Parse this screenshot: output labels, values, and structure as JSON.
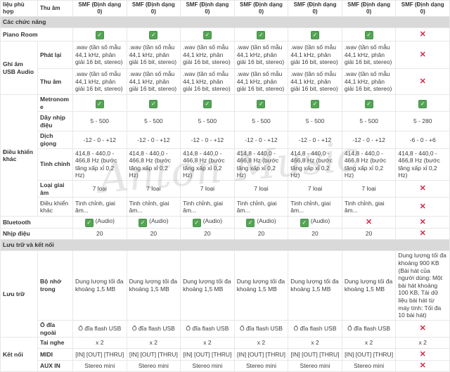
{
  "watermark": "Anton Music",
  "colors": {
    "check_green": "#55a455",
    "cross_red": "#cd2b47",
    "section_bg": "#d9d9d9",
    "border": "#e7e7e7",
    "text": "#3d3d3d"
  },
  "table": {
    "header": {
      "group": "liệu phù hợp",
      "sub": "Thu âm",
      "values": [
        "SMF (Định dạng 0)",
        "SMF (Định dạng 0)",
        "SMF (Định dạng 0)",
        "SMF (Định dạng 0)",
        "SMF (Định dạng 0)",
        "SMF (Định dạng 0)",
        "SMF (Định dạng 0)"
      ]
    },
    "rows": [
      {
        "type": "header",
        "group": "liệu phù hợp",
        "label": "Thu âm",
        "cells": [
          {
            "text": "SMF (Định dạng 0)"
          },
          {
            "text": "SMF (Định dạng 0)"
          },
          {
            "text": "SMF (Định dạng 0)"
          },
          {
            "text": "SMF (Định dạng 0)"
          },
          {
            "text": "SMF (Định dạng 0)"
          },
          {
            "text": "SMF (Định dạng 0)"
          },
          {
            "text": "SMF (Định dạng 0)"
          }
        ]
      },
      {
        "type": "section",
        "label": "Các chức năng"
      },
      {
        "type": "row",
        "span2": true,
        "label": "Piano Room",
        "cells": [
          {
            "icon": "check"
          },
          {
            "icon": "check"
          },
          {
            "icon": "check"
          },
          {
            "icon": "check"
          },
          {
            "icon": "check"
          },
          {
            "icon": "check"
          },
          {
            "icon": "cross"
          }
        ]
      },
      {
        "type": "row",
        "group": "Ghi âm USB Audio",
        "group_rows": 2,
        "label": "Phát lại",
        "cells": [
          {
            "text": ".wav (tần số mẫu 44,1 kHz, phân giải 16 bit, stereo)"
          },
          {
            "text": ".wav (tần số mẫu 44,1 kHz, phân giải 16 bit, stereo)"
          },
          {
            "text": ".wav (tần số mẫu 44,1 kHz, phân giải 16 bit, stereo)"
          },
          {
            "text": ".wav (tần số mẫu 44,1 kHz, phân giải 16 bit, stereo)"
          },
          {
            "text": ".wav (tần số mẫu 44,1 kHz, phân giải 16 bit, stereo)"
          },
          {
            "text": ".wav (tần số mẫu 44,1 kHz, phân giải 16 bit, stereo)"
          },
          {
            "icon": "cross"
          }
        ]
      },
      {
        "type": "row",
        "label": "Thu âm",
        "cells": [
          {
            "text": ".wav (tần số mẫu 44,1 kHz, phân giải 16 bit, stereo)"
          },
          {
            "text": ".wav (tần số mẫu 44,1 kHz, phân giải 16 bit, stereo)"
          },
          {
            "text": ".wav (tần số mẫu 44,1 kHz, phân giải 16 bit, stereo)"
          },
          {
            "text": ".wav (tần số mẫu 44,1 kHz, phân giải 16 bit, stereo)"
          },
          {
            "text": ".wav (tần số mẫu 44,1 kHz, phân giải 16 bit, stereo)"
          },
          {
            "text": ".wav (tần số mẫu 44,1 kHz, phân giải 16 bit, stereo)"
          },
          {
            "icon": "cross"
          }
        ]
      },
      {
        "type": "row",
        "group": "Điều khiển khác",
        "group_rows": 6,
        "label": "Metronome",
        "cells": [
          {
            "icon": "check"
          },
          {
            "icon": "check"
          },
          {
            "icon": "check"
          },
          {
            "icon": "check"
          },
          {
            "icon": "check"
          },
          {
            "icon": "check"
          },
          {
            "icon": "check"
          }
        ]
      },
      {
        "type": "row",
        "label": "Dãy nhịp điệu",
        "cells": [
          {
            "text": "5 - 500"
          },
          {
            "text": "5 - 500"
          },
          {
            "text": "5 - 500"
          },
          {
            "text": "5 - 500"
          },
          {
            "text": "5 - 500"
          },
          {
            "text": "5 - 500"
          },
          {
            "text": "5 - 280"
          }
        ]
      },
      {
        "type": "row",
        "label": "Dịch giọng",
        "cells": [
          {
            "text": "-12 - 0 - +12"
          },
          {
            "text": "-12 - 0 - +12"
          },
          {
            "text": "-12 - 0 - +12"
          },
          {
            "text": "-12 - 0 - +12"
          },
          {
            "text": "-12 - 0 - +12"
          },
          {
            "text": "-12 - 0 - +12"
          },
          {
            "text": "-6 - 0 - +6"
          }
        ]
      },
      {
        "type": "row",
        "label": "Tinh chỉnh",
        "cells": [
          {
            "text": "414,8 - 440,0 - 466,8 Hz (bước tăng xấp xỉ 0,2 Hz)"
          },
          {
            "text": "414,8 - 440,0 - 466,8 Hz (bước tăng xấp xỉ 0,2 Hz)"
          },
          {
            "text": "414,8 - 440,0 - 466,8 Hz (bước tăng xấp xỉ 0,2 Hz)"
          },
          {
            "text": "414,8 - 440,0 - 466,8 Hz (bước tăng xấp xỉ 0,2 Hz)"
          },
          {
            "text": "414,8 - 440,0 - 466,8 Hz (bước tăng xấp xỉ 0,2 Hz)"
          },
          {
            "text": "414,8 - 440,0 - 466,8 Hz (bước tăng xấp xỉ 0,2 Hz)"
          },
          {
            "text": "414,8 - 440,0 - 466,8 Hz (bước tăng xấp xỉ 0,2 Hz)"
          }
        ]
      },
      {
        "type": "row",
        "label": "Loại giai âm",
        "cells": [
          {
            "text": "7 loại"
          },
          {
            "text": "7 loại"
          },
          {
            "text": "7 loại"
          },
          {
            "text": "7 loại"
          },
          {
            "text": "7 loại"
          },
          {
            "text": "7 loại"
          },
          {
            "icon": "cross"
          }
        ]
      },
      {
        "type": "row",
        "label": "Điều khiển khác",
        "label_normal": true,
        "cells": [
          {
            "text": "Tinh chỉnh, giai âm..."
          },
          {
            "text": "Tinh chỉnh, giai âm..."
          },
          {
            "text": "Tinh chỉnh, giai âm..."
          },
          {
            "text": "Tinh chỉnh, giai âm..."
          },
          {
            "text": "Tinh chỉnh, giai âm..."
          },
          {
            "text": "Tinh chỉnh, giai âm..."
          },
          {
            "icon": "cross"
          }
        ]
      },
      {
        "type": "row",
        "span2": true,
        "label": "Bluetooth",
        "cells": [
          {
            "icon": "check",
            "text": "(Audio)"
          },
          {
            "icon": "check",
            "text": "(Audio)"
          },
          {
            "icon": "check",
            "text": "(Audio)"
          },
          {
            "icon": "check",
            "text": "(Audio)"
          },
          {
            "icon": "check",
            "text": "(Audio)"
          },
          {
            "icon": "cross"
          },
          {
            "icon": "cross"
          }
        ]
      },
      {
        "type": "row",
        "span2": true,
        "label": "Nhịp điệu",
        "cells": [
          {
            "text": "20"
          },
          {
            "text": "20"
          },
          {
            "text": "20"
          },
          {
            "text": "20"
          },
          {
            "text": "20"
          },
          {
            "text": "20"
          },
          {
            "icon": "cross"
          }
        ]
      },
      {
        "type": "section",
        "label": "Lưu trữ và kết nối"
      },
      {
        "type": "row",
        "group": "Lưu trữ",
        "group_rows": 2,
        "label": "Bộ nhớ trong",
        "cells": [
          {
            "text": "Dung lượng tối đa khoảng 1,5 MB"
          },
          {
            "text": "Dung lượng tối đa khoảng 1,5 MB"
          },
          {
            "text": "Dung lượng tối đa khoảng 1,5 MB"
          },
          {
            "text": "Dung lượng tối đa khoảng 1,5 MB"
          },
          {
            "text": "Dung lượng tối đa khoảng 1,5 MB"
          },
          {
            "text": "Dung lượng tối đa khoảng 1,5 MB"
          },
          {
            "text": "Dung lượng tối đa khoảng 900 KB (Bài hát của người dùng: Một bài hát khoảng 100 KB, Tải dữ liệu bài hát từ máy tính: Tối đa 10 bài hát)"
          }
        ]
      },
      {
        "type": "row",
        "label": "Ổ đĩa ngoài",
        "cells": [
          {
            "text": "Ổ đĩa flash USB"
          },
          {
            "text": "Ổ đĩa flash USB"
          },
          {
            "text": "Ổ đĩa flash USB"
          },
          {
            "text": "Ổ đĩa flash USB"
          },
          {
            "text": "Ổ đĩa flash USB"
          },
          {
            "text": "Ổ đĩa flash USB"
          },
          {
            "icon": "cross"
          }
        ]
      },
      {
        "type": "row",
        "group": "Kết nối",
        "group_rows": 3,
        "label": "Tai nghe",
        "cells": [
          {
            "text": "x 2"
          },
          {
            "text": "x 2"
          },
          {
            "text": "x 2"
          },
          {
            "text": "x 2"
          },
          {
            "text": "x 2"
          },
          {
            "text": "x 2"
          },
          {
            "text": "x 2"
          }
        ]
      },
      {
        "type": "row",
        "label": "MIDI",
        "cells": [
          {
            "text": "[IN] [OUT] [THRU]"
          },
          {
            "text": "[IN] [OUT] [THRU]"
          },
          {
            "text": "[IN] [OUT] [THRU]"
          },
          {
            "text": "[IN] [OUT] [THRU]"
          },
          {
            "text": "[IN] [OUT] [THRU]"
          },
          {
            "text": "[IN] [OUT] [THRU]"
          },
          {
            "icon": "cross"
          }
        ]
      },
      {
        "type": "row",
        "label": "AUX IN",
        "cells": [
          {
            "text": "Stereo mini"
          },
          {
            "text": "Stereo mini"
          },
          {
            "text": "Stereo mini"
          },
          {
            "text": "Stereo mini"
          },
          {
            "text": "Stereo mini"
          },
          {
            "text": "Stereo mini"
          },
          {
            "icon": "cross"
          }
        ]
      }
    ]
  }
}
